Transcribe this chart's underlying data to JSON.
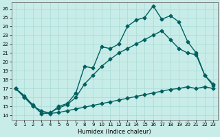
{
  "title": "",
  "xlabel": "Humidex (Indice chaleur)",
  "ylabel": "",
  "bg_color": "#c8ece8",
  "line_color": "#006060",
  "grid_color": "#a8dcd8",
  "xlim": [
    -0.5,
    23.5
  ],
  "ylim": [
    13.5,
    26.7
  ],
  "xticks": [
    0,
    1,
    2,
    3,
    4,
    5,
    6,
    7,
    8,
    9,
    10,
    11,
    12,
    13,
    14,
    15,
    16,
    17,
    18,
    19,
    20,
    21,
    22,
    23
  ],
  "yticks": [
    14,
    15,
    16,
    17,
    18,
    19,
    20,
    21,
    22,
    23,
    24,
    25,
    26
  ],
  "line1_x": [
    0,
    1,
    2,
    3,
    4,
    5,
    6,
    7,
    8,
    9,
    10,
    11,
    12,
    13,
    14,
    15,
    16,
    17,
    18,
    19,
    20,
    21,
    22,
    23
  ],
  "line1_y": [
    17.0,
    16.0,
    15.2,
    14.2,
    14.2,
    15.0,
    15.3,
    16.5,
    19.5,
    19.3,
    21.7,
    21.5,
    22.0,
    24.0,
    24.7,
    25.0,
    26.3,
    24.8,
    25.2,
    24.5,
    22.3,
    21.0,
    18.5,
    17.5
  ],
  "line2_x": [
    0,
    1,
    2,
    3,
    4,
    5,
    6,
    7,
    8,
    9,
    10,
    11,
    12,
    13,
    14,
    15,
    16,
    17,
    18,
    19,
    20,
    21,
    22,
    23
  ],
  "line2_y": [
    17.0,
    16.2,
    15.1,
    14.2,
    14.3,
    14.8,
    15.2,
    16.0,
    17.5,
    18.5,
    19.5,
    20.3,
    21.0,
    21.5,
    22.0,
    22.5,
    23.0,
    23.5,
    22.5,
    21.5,
    21.0,
    20.8,
    18.5,
    17.3
  ],
  "line3_x": [
    0,
    1,
    2,
    3,
    4,
    5,
    6,
    7,
    8,
    9,
    10,
    11,
    12,
    13,
    14,
    15,
    16,
    17,
    18,
    19,
    20,
    21,
    22,
    23
  ],
  "line3_y": [
    17.0,
    16.0,
    15.0,
    14.5,
    14.2,
    14.3,
    14.5,
    14.7,
    14.9,
    15.1,
    15.3,
    15.5,
    15.7,
    15.9,
    16.1,
    16.3,
    16.5,
    16.7,
    16.9,
    17.0,
    17.2,
    17.0,
    17.2,
    17.0
  ],
  "marker": "D",
  "markersize": 2.5,
  "linewidth": 1.0
}
